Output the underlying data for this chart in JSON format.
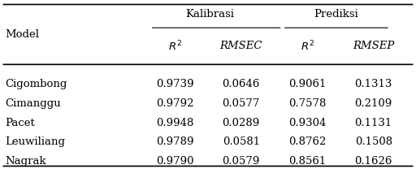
{
  "col_headers_l1": [
    "Kalibrasi",
    "Prediksi"
  ],
  "col_headers_l2": [
    "$R^2$",
    "RMSEC",
    "$R^2$",
    "RMSEP"
  ],
  "row_labels": [
    "Cigombong",
    "Cimanggu",
    "Pacet",
    "Leuwiliang",
    "Nagrak"
  ],
  "table_data": [
    [
      0.9739,
      0.0646,
      0.9061,
      0.1313
    ],
    [
      0.9792,
      0.0577,
      0.7578,
      0.2109
    ],
    [
      0.9948,
      0.0289,
      0.9304,
      0.1131
    ],
    [
      0.9789,
      0.0581,
      0.8762,
      0.1508
    ],
    [
      0.979,
      0.0579,
      0.8561,
      0.1626
    ]
  ],
  "bg_color": "#ffffff",
  "font_size": 9.5,
  "header_font_size": 9.5
}
